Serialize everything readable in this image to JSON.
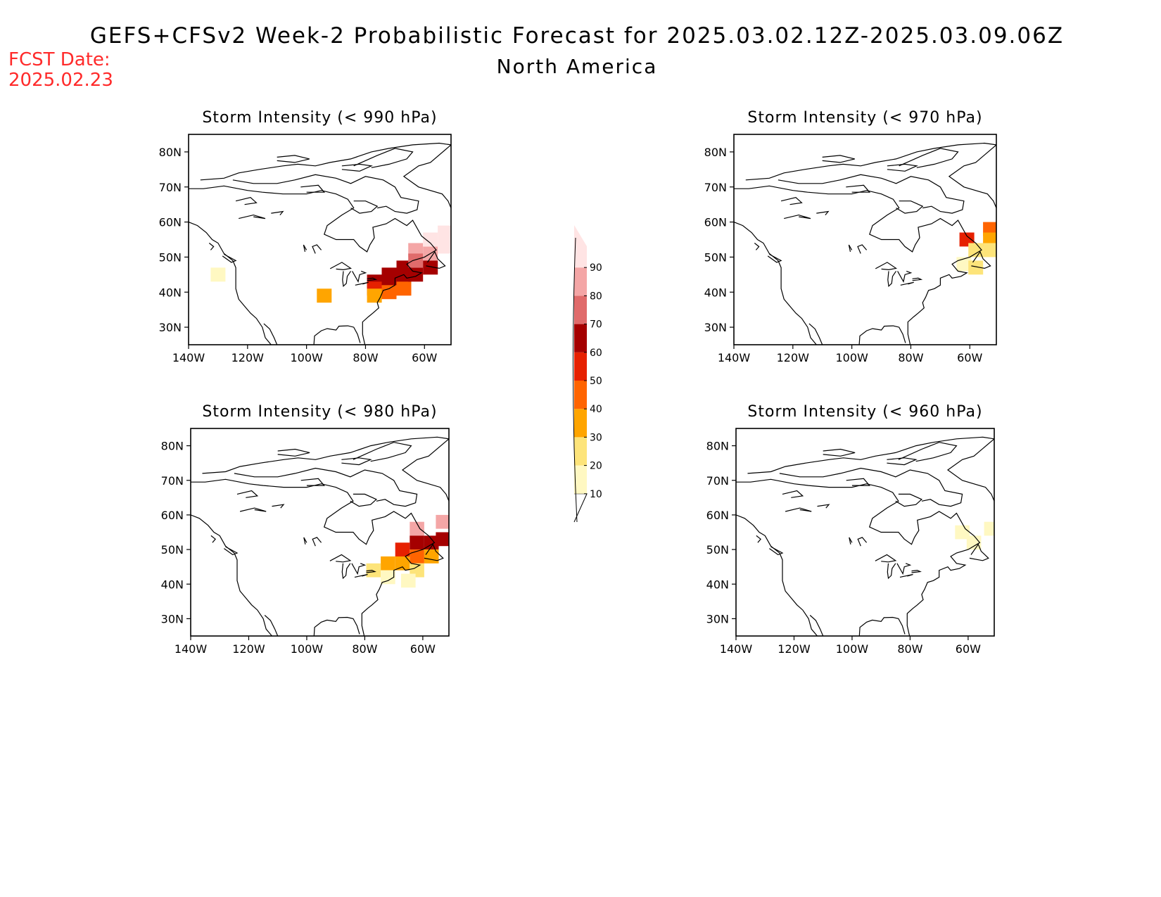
{
  "header": {
    "title": "GEFS+CFSv2 Week-2 Probabilistic Forecast for 2025.03.02.12Z-2025.03.09.06Z",
    "subtitle": "North America",
    "fcst_label": "FCST Date:",
    "fcst_date": "2025.02.23"
  },
  "colors": {
    "levels": [
      10,
      20,
      30,
      40,
      50,
      60,
      70,
      80,
      90
    ],
    "bins": [
      "#fff8c2",
      "#fde47a",
      "#ffa500",
      "#ff6400",
      "#e62000",
      "#a50000",
      "#e06b6b",
      "#f4a6a6",
      "#ffe4e4"
    ]
  },
  "colorbar": {
    "labels": [
      "10",
      "20",
      "30",
      "40",
      "50",
      "60",
      "70",
      "80",
      "90"
    ]
  },
  "chart_data": [
    {
      "type": "heatmap",
      "title": "Storm Intensity (< 990 hPa)",
      "x_ticks": [
        "140W",
        "120W",
        "100W",
        "80W",
        "60W"
      ],
      "y_ticks": [
        "30N",
        "40N",
        "50N",
        "60N",
        "70N",
        "80N"
      ],
      "xlim_lon": [
        -140,
        -51
      ],
      "ylim_lat": [
        25,
        85
      ],
      "cells": [
        {
          "lon": -77,
          "lat": 43,
          "p": 60
        },
        {
          "lon": -77,
          "lat": 41,
          "p": 50
        },
        {
          "lon": -77,
          "lat": 39,
          "p": 30
        },
        {
          "lon": -72,
          "lat": 45,
          "p": 60
        },
        {
          "lon": -72,
          "lat": 43,
          "p": 60
        },
        {
          "lon": -72,
          "lat": 40,
          "p": 40
        },
        {
          "lon": -67,
          "lat": 47,
          "p": 60
        },
        {
          "lon": -67,
          "lat": 44,
          "p": 60
        },
        {
          "lon": -67,
          "lat": 41,
          "p": 40
        },
        {
          "lon": -63,
          "lat": 52,
          "p": 80
        },
        {
          "lon": -63,
          "lat": 49,
          "p": 70
        },
        {
          "lon": -63,
          "lat": 45,
          "p": 60
        },
        {
          "lon": -58,
          "lat": 55,
          "p": 90
        },
        {
          "lon": -58,
          "lat": 51,
          "p": 80
        },
        {
          "lon": -58,
          "lat": 47,
          "p": 60
        },
        {
          "lon": -53,
          "lat": 57,
          "p": 90
        },
        {
          "lon": -53,
          "lat": 53,
          "p": 90
        },
        {
          "lon": -94,
          "lat": 39,
          "p": 30
        },
        {
          "lon": -130,
          "lat": 45,
          "p": 10
        }
      ]
    },
    {
      "type": "heatmap",
      "title": "Storm Intensity (< 970 hPa)",
      "x_ticks": [
        "140W",
        "120W",
        "100W",
        "80W",
        "60W"
      ],
      "y_ticks": [
        "30N",
        "40N",
        "50N",
        "60N",
        "70N",
        "80N"
      ],
      "xlim_lon": [
        -140,
        -51
      ],
      "ylim_lat": [
        25,
        85
      ],
      "cells": [
        {
          "lon": -61,
          "lat": 55,
          "p": 50
        },
        {
          "lon": -58,
          "lat": 52,
          "p": 20
        },
        {
          "lon": -53,
          "lat": 58,
          "p": 40
        },
        {
          "lon": -53,
          "lat": 55,
          "p": 30
        },
        {
          "lon": -53,
          "lat": 52,
          "p": 20
        },
        {
          "lon": -62,
          "lat": 48,
          "p": 10
        },
        {
          "lon": -58,
          "lat": 47,
          "p": 20
        }
      ]
    },
    {
      "type": "heatmap",
      "title": "Storm Intensity (< 980 hPa)",
      "x_ticks": [
        "140W",
        "120W",
        "100W",
        "80W",
        "60W"
      ],
      "y_ticks": [
        "30N",
        "40N",
        "50N",
        "60N",
        "70N",
        "80N"
      ],
      "xlim_lon": [
        -140,
        -51
      ],
      "ylim_lat": [
        25,
        85
      ],
      "cells": [
        {
          "lon": -62,
          "lat": 56,
          "p": 80
        },
        {
          "lon": -53,
          "lat": 58,
          "p": 80
        },
        {
          "lon": -62,
          "lat": 52,
          "p": 60
        },
        {
          "lon": -57,
          "lat": 52,
          "p": 60
        },
        {
          "lon": -53,
          "lat": 53,
          "p": 60
        },
        {
          "lon": -67,
          "lat": 50,
          "p": 50
        },
        {
          "lon": -62,
          "lat": 48,
          "p": 40
        },
        {
          "lon": -57,
          "lat": 48,
          "p": 30
        },
        {
          "lon": -72,
          "lat": 46,
          "p": 30
        },
        {
          "lon": -67,
          "lat": 46,
          "p": 30
        },
        {
          "lon": -62,
          "lat": 44,
          "p": 20
        },
        {
          "lon": -77,
          "lat": 44,
          "p": 20
        },
        {
          "lon": -72,
          "lat": 42,
          "p": 10
        },
        {
          "lon": -65,
          "lat": 41,
          "p": 10
        }
      ]
    },
    {
      "type": "heatmap",
      "title": "Storm Intensity (< 960 hPa)",
      "x_ticks": [
        "140W",
        "120W",
        "100W",
        "80W",
        "60W"
      ],
      "y_ticks": [
        "30N",
        "40N",
        "50N",
        "60N",
        "70N",
        "80N"
      ],
      "xlim_lon": [
        -140,
        -51
      ],
      "ylim_lat": [
        25,
        85
      ],
      "cells": [
        {
          "lon": -58,
          "lat": 52,
          "p": 10
        },
        {
          "lon": -62,
          "lat": 55,
          "p": 10
        },
        {
          "lon": -52,
          "lat": 56,
          "p": 10
        }
      ]
    }
  ]
}
